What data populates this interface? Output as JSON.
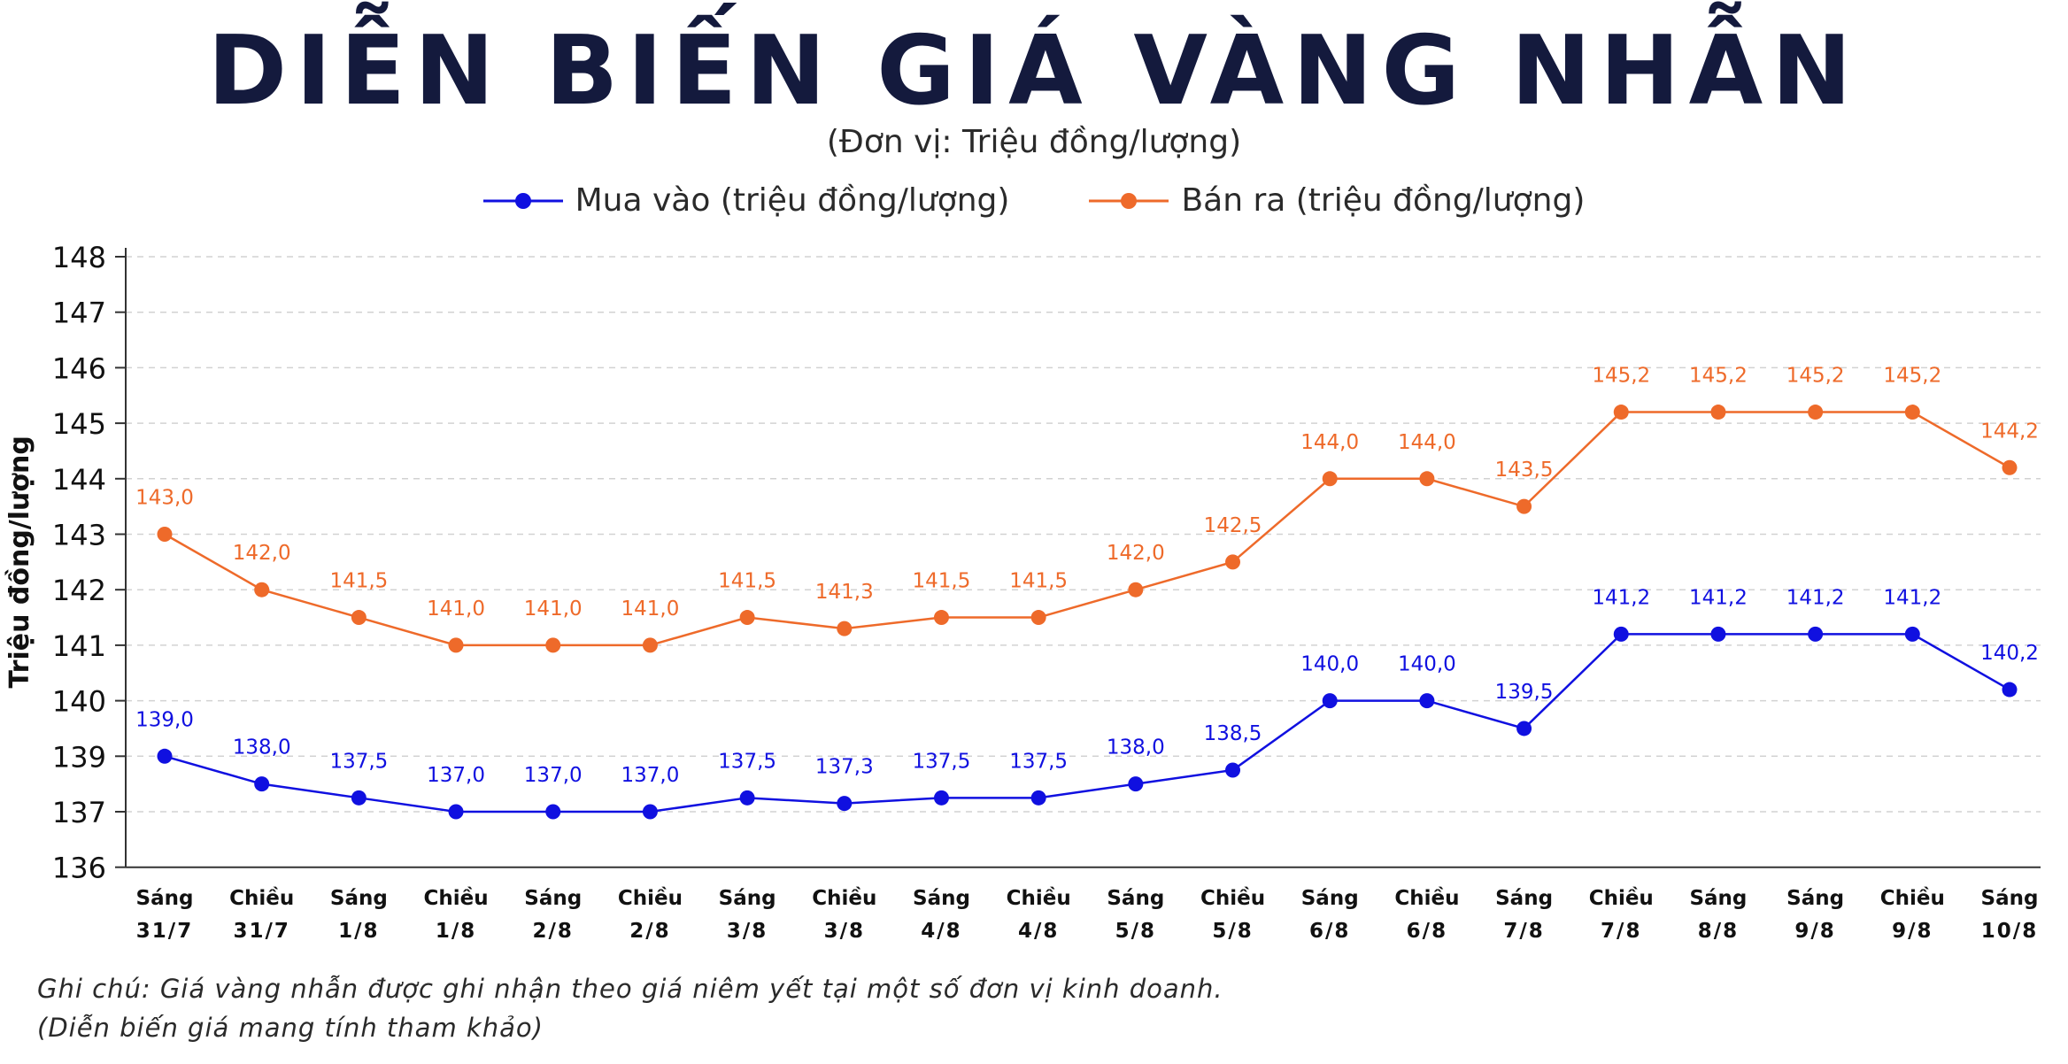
{
  "header": {
    "title": "DIỄN BIẾN GIÁ VÀNG NHẪN",
    "subtitle": "(Đơn vị: Triệu đồng/lượng)"
  },
  "footer": {
    "note_line1": "Ghi chú: Giá vàng nhẫn được ghi nhận theo giá niêm yết tại một số đơn vị kinh doanh.",
    "note_line2": "(Diễn biến giá mang tính tham khảo)"
  },
  "colors": {
    "buy": "#1010e0",
    "sell": "#ee6a2a",
    "title": "#141a3d"
  },
  "chart_data": {
    "type": "line",
    "ylabel": "Triệu đồng/lượng",
    "yticks": [
      136,
      137,
      139,
      140,
      141,
      142,
      143,
      144,
      145,
      146,
      147,
      148
    ],
    "grid": true,
    "legend_position": "top-center",
    "categories": [
      [
        "Sáng",
        "31/7"
      ],
      [
        "Chiều",
        "31/7"
      ],
      [
        "Sáng",
        "1/8"
      ],
      [
        "Chiều",
        "1/8"
      ],
      [
        "Sáng",
        "2/8"
      ],
      [
        "Chiều",
        "2/8"
      ],
      [
        "Sáng",
        "3/8"
      ],
      [
        "Chiều",
        "3/8"
      ],
      [
        "Sáng",
        "4/8"
      ],
      [
        "Chiều",
        "4/8"
      ],
      [
        "Sáng",
        "5/8"
      ],
      [
        "Chiều",
        "5/8"
      ],
      [
        "Sáng",
        "6/8"
      ],
      [
        "Chiều",
        "6/8"
      ],
      [
        "Sáng",
        "7/8"
      ],
      [
        "Chiều",
        "7/8"
      ],
      [
        "Sáng",
        "8/8"
      ],
      [
        "Sáng",
        "9/8"
      ],
      [
        "Chiều",
        "9/8"
      ],
      [
        "Sáng",
        "10/8"
      ]
    ],
    "series": [
      {
        "name": "Mua vào (triệu đồng/lượng)",
        "color": "#1010e0",
        "values": [
          139.0,
          138.0,
          137.5,
          137.0,
          137.0,
          137.0,
          137.5,
          137.3,
          137.5,
          137.5,
          138.0,
          138.5,
          140.0,
          140.0,
          139.5,
          141.2,
          141.2,
          141.2,
          141.2,
          140.2
        ],
        "labels": [
          "139,0",
          "138,0",
          "137,5",
          "137,0",
          "137,0",
          "137,0",
          "137,5",
          "137,3",
          "137,5",
          "137,5",
          "138,0",
          "138,5",
          "140,0",
          "140,0",
          "139,5",
          "141,2",
          "141,2",
          "141,2",
          "141,2",
          "140,2"
        ]
      },
      {
        "name": "Bán ra (triệu đồng/lượng)",
        "color": "#ee6a2a",
        "values": [
          143.0,
          142.0,
          141.5,
          141.0,
          141.0,
          141.0,
          141.5,
          141.3,
          141.5,
          141.5,
          142.0,
          142.5,
          144.0,
          144.0,
          143.5,
          145.2,
          145.2,
          145.2,
          145.2,
          144.2
        ],
        "labels": [
          "143,0",
          "142,0",
          "141,5",
          "141,0",
          "141,0",
          "141,0",
          "141,5",
          "141,3",
          "141,5",
          "141,5",
          "142,0",
          "142,5",
          "144,0",
          "144,0",
          "143,5",
          "145,2",
          "145,2",
          "145,2",
          "145,2",
          "144,2"
        ]
      }
    ]
  }
}
